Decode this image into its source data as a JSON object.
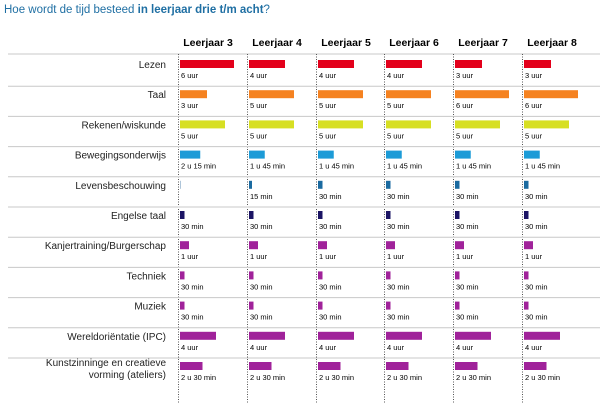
{
  "title": {
    "prefix": "Hoe wordt de tijd besteed",
    "bold": "in leerjaar drie t/m acht",
    "suffix": "?"
  },
  "chart_data": {
    "type": "bar",
    "unit": "hours",
    "title": "Hoe wordt de tijd besteed in leerjaar drie t/m acht?",
    "groups": [
      "Leerjaar 3",
      "Leerjaar 4",
      "Leerjaar 5",
      "Leerjaar 6",
      "Leerjaar 7",
      "Leerjaar 8"
    ],
    "subjects": [
      {
        "name": "Lezen",
        "color": "#e3001b",
        "values": [
          6,
          4,
          4,
          4,
          3,
          3
        ],
        "labels": [
          "6 uur",
          "4 uur",
          "4 uur",
          "4 uur",
          "3 uur",
          "3 uur"
        ]
      },
      {
        "name": "Taal",
        "color": "#f58220",
        "values": [
          3,
          5,
          5,
          5,
          6,
          6
        ],
        "labels": [
          "3 uur",
          "5 uur",
          "5 uur",
          "5 uur",
          "6 uur",
          "6 uur"
        ]
      },
      {
        "name": "Rekenen/wiskunde",
        "color": "#d7df23",
        "values": [
          5,
          5,
          5,
          5,
          5,
          5
        ],
        "labels": [
          "5 uur",
          "5 uur",
          "5 uur",
          "5 uur",
          "5 uur",
          "5 uur"
        ]
      },
      {
        "name": "Bewegingsonderwijs",
        "color": "#1c9bd7",
        "values": [
          2.25,
          1.75,
          1.75,
          1.75,
          1.75,
          1.75
        ],
        "labels": [
          "2 u 15 min",
          "1 u 45 min",
          "1 u 45 min",
          "1 u 45 min",
          "1 u 45 min",
          "1 u 45 min"
        ]
      },
      {
        "name": "Levensbeschouwing",
        "color": "#1a6aa0",
        "values": [
          0,
          0.25,
          0.5,
          0.5,
          0.5,
          0.5
        ],
        "labels": [
          "",
          "15 min",
          "30 min",
          "30 min",
          "30 min",
          "30 min"
        ]
      },
      {
        "name": "Engelse taal",
        "color": "#1b1464",
        "values": [
          0.5,
          0.5,
          0.5,
          0.5,
          0.5,
          0.5
        ],
        "labels": [
          "30 min",
          "30 min",
          "30 min",
          "30 min",
          "30 min",
          "30 min"
        ]
      },
      {
        "name": "Kanjertraining/Burgerschap",
        "color": "#a0229a",
        "values": [
          1,
          1,
          1,
          1,
          1,
          1
        ],
        "labels": [
          "1 uur",
          "1 uur",
          "1 uur",
          "1 uur",
          "1 uur",
          "1 uur"
        ]
      },
      {
        "name": "Techniek",
        "color": "#a0229a",
        "values": [
          0.5,
          0.5,
          0.5,
          0.5,
          0.5,
          0.5
        ],
        "labels": [
          "30 min",
          "30 min",
          "30 min",
          "30 min",
          "30 min",
          "30 min"
        ]
      },
      {
        "name": "Muziek",
        "color": "#a0229a",
        "values": [
          0.5,
          0.5,
          0.5,
          0.5,
          0.5,
          0.5
        ],
        "labels": [
          "30 min",
          "30 min",
          "30 min",
          "30 min",
          "30 min",
          "30 min"
        ]
      },
      {
        "name": "Wereldoriëntatie (IPC)",
        "color": "#a0229a",
        "values": [
          4,
          4,
          4,
          4,
          4,
          4
        ],
        "labels": [
          "4 uur",
          "4 uur",
          "4 uur",
          "4 uur",
          "4 uur",
          "4 uur"
        ]
      },
      {
        "name": "Kunstzinninge en creatieve vorming (ateliers)",
        "name_lines": [
          "Kunstzinninge en creatieve",
          "vorming (ateliers)"
        ],
        "color": "#a0229a",
        "values": [
          2.5,
          2.5,
          2.5,
          2.5,
          2.5,
          2.5
        ],
        "labels": [
          "2 u 30 min",
          "2 u 30 min",
          "2 u 30 min",
          "2 u 30 min",
          "2 u 30 min",
          "2 u 30 min"
        ]
      }
    ]
  }
}
